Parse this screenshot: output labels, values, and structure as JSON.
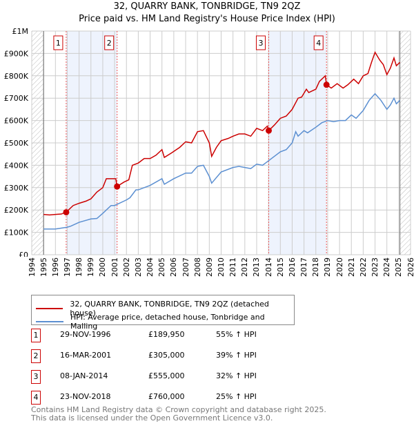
{
  "title": "32, QUARRY BANK, TONBRIDGE, TN9 2QZ",
  "subtitle": "Price paid vs. HM Land Registry's House Price Index (HPI)",
  "chart_data": {
    "type": "line",
    "xlim": [
      1994,
      2026
    ],
    "ylim": [
      0,
      1000000
    ],
    "y_ticks": [
      {
        "v": 0,
        "label": "£0"
      },
      {
        "v": 100000,
        "label": "£100K"
      },
      {
        "v": 200000,
        "label": "£200K"
      },
      {
        "v": 300000,
        "label": "£300K"
      },
      {
        "v": 400000,
        "label": "£400K"
      },
      {
        "v": 500000,
        "label": "£500K"
      },
      {
        "v": 600000,
        "label": "£600K"
      },
      {
        "v": 700000,
        "label": "£700K"
      },
      {
        "v": 800000,
        "label": "£800K"
      },
      {
        "v": 900000,
        "label": "£900K"
      },
      {
        "v": 1000000,
        "label": "£1M"
      }
    ],
    "x_ticks": [
      "1994",
      "1995",
      "1996",
      "1997",
      "1998",
      "1999",
      "2000",
      "2001",
      "2002",
      "2003",
      "2004",
      "2005",
      "2006",
      "2007",
      "2008",
      "2009",
      "2010",
      "2011",
      "2012",
      "2013",
      "2014",
      "2015",
      "2016",
      "2017",
      "2018",
      "2019",
      "2020",
      "2021",
      "2022",
      "2023",
      "2024",
      "2025",
      "2026"
    ],
    "series": [
      {
        "name": "32, QUARRY BANK, TONBRIDGE, TN9 2QZ (detached house)",
        "color": "#cc0000",
        "x": [
          1995,
          1995.5,
          1996,
          1996.5,
          1996.9,
          1997.5,
          1998,
          1998.6,
          1999,
          1999.5,
          2000,
          2000.3,
          2001.1,
          2001.2,
          2001.8,
          2002.2,
          2002.5,
          2003,
          2003.5,
          2004,
          2004.5,
          2005,
          2005.2,
          2005.8,
          2006.5,
          2007,
          2007.5,
          2008,
          2008.5,
          2009,
          2009.2,
          2009.6,
          2010,
          2010.6,
          2011,
          2011.5,
          2012,
          2012.5,
          2013,
          2013.5,
          2013.9,
          2014.03,
          2014.5,
          2015,
          2015.5,
          2016,
          2016.5,
          2016.8,
          2017.2,
          2017.4,
          2018,
          2018.3,
          2018.8,
          2018.9,
          2019.3,
          2019.8,
          2020.3,
          2020.7,
          2021.2,
          2021.6,
          2022,
          2022.4,
          2022.7,
          2023,
          2023.4,
          2023.7,
          2024,
          2024.3,
          2024.6,
          2024.8,
          2025.1
        ],
        "y": [
          180000,
          178000,
          180000,
          182000,
          190000,
          220000,
          230000,
          240000,
          250000,
          280000,
          300000,
          340000,
          340000,
          305000,
          325000,
          335000,
          400000,
          410000,
          430000,
          430000,
          445000,
          470000,
          435000,
          455000,
          480000,
          505000,
          500000,
          550000,
          555000,
          500000,
          440000,
          480000,
          510000,
          520000,
          530000,
          540000,
          540000,
          530000,
          565000,
          555000,
          575000,
          555000,
          580000,
          610000,
          620000,
          650000,
          700000,
          705000,
          740000,
          725000,
          740000,
          775000,
          800000,
          760000,
          745000,
          765000,
          745000,
          760000,
          785000,
          765000,
          800000,
          810000,
          860000,
          905000,
          870000,
          850000,
          805000,
          835000,
          880000,
          845000,
          860000
        ]
      },
      {
        "name": "HPI: Average price, detached house, Tonbridge and Malling",
        "color": "#5b8fd1",
        "x": [
          1995,
          1996,
          1997,
          1997.3,
          1998,
          1999,
          1999.5,
          2000,
          2000.7,
          2001,
          2002,
          2002.3,
          2002.8,
          2003,
          2004,
          2005,
          2005.2,
          2006,
          2007,
          2007.5,
          2008,
          2008.5,
          2009,
          2009.2,
          2010,
          2011,
          2011.5,
          2012,
          2012.5,
          2013,
          2013.5,
          2014,
          2015,
          2015.5,
          2016,
          2016.3,
          2016.5,
          2017,
          2017.3,
          2018,
          2018.5,
          2019,
          2019.5,
          2020,
          2020.5,
          2021,
          2021.4,
          2022,
          2022.5,
          2023,
          2023.5,
          2024,
          2024.3,
          2024.6,
          2024.8,
          2025.1
        ],
        "y": [
          115000,
          115000,
          123000,
          128000,
          145000,
          160000,
          162000,
          185000,
          220000,
          220000,
          245000,
          255000,
          290000,
          290000,
          310000,
          340000,
          315000,
          340000,
          365000,
          365000,
          395000,
          400000,
          350000,
          320000,
          370000,
          390000,
          395000,
          390000,
          385000,
          405000,
          400000,
          420000,
          460000,
          470000,
          500000,
          550000,
          530000,
          555000,
          545000,
          570000,
          590000,
          600000,
          595000,
          600000,
          600000,
          625000,
          610000,
          645000,
          690000,
          720000,
          690000,
          650000,
          670000,
          700000,
          675000,
          690000
        ]
      }
    ],
    "shaded_ranges": [
      [
        1996.91,
        2001.21
      ],
      [
        2014.02,
        2018.9
      ]
    ],
    "markers": [
      {
        "label": "1",
        "x": 1996.91,
        "y": 189950
      },
      {
        "label": "2",
        "x": 2001.21,
        "y": 305000
      },
      {
        "label": "3",
        "x": 2014.02,
        "y": 555000
      },
      {
        "label": "4",
        "x": 2018.9,
        "y": 760000
      }
    ]
  },
  "legend": {
    "price": "32, QUARRY BANK, TONBRIDGE, TN9 2QZ (detached house)",
    "hpi": "HPI: Average price, detached house, Tonbridge and Malling"
  },
  "transactions": [
    {
      "n": "1",
      "date": "29-NOV-1996",
      "price": "£189,950",
      "hpi": "55% ↑ HPI"
    },
    {
      "n": "2",
      "date": "16-MAR-2001",
      "price": "£305,000",
      "hpi": "39% ↑ HPI"
    },
    {
      "n": "3",
      "date": "08-JAN-2014",
      "price": "£555,000",
      "hpi": "32% ↑ HPI"
    },
    {
      "n": "4",
      "date": "23-NOV-2018",
      "price": "£760,000",
      "hpi": "25% ↑ HPI"
    }
  ],
  "footer": {
    "line1": "Contains HM Land Registry data © Crown copyright and database right 2025.",
    "line2": "This data is licensed under the Open Government Licence v3.0."
  }
}
